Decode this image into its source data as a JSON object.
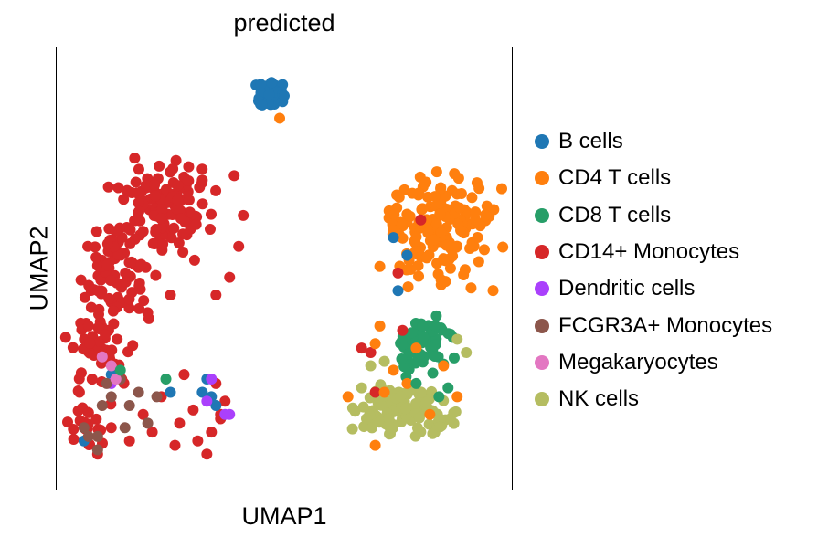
{
  "chart_data": {
    "type": "scatter",
    "title": "predicted",
    "xlabel": "UMAP1",
    "ylabel": "UMAP2",
    "xticks": [],
    "yticks": [],
    "grid": false,
    "legend_position": "right",
    "xlim": [
      0,
      100
    ],
    "ylim": [
      0,
      100
    ],
    "categories": [
      {
        "name": "B cells",
        "color": "#1f77b4"
      },
      {
        "name": "CD4 T cells",
        "color": "#ff7f0e"
      },
      {
        "name": "CD8 T cells",
        "color": "#279e68"
      },
      {
        "name": "CD14+ Monocytes",
        "color": "#d62728"
      },
      {
        "name": "Dendritic cells",
        "color": "#aa40fc"
      },
      {
        "name": "FCGR3A+ Monocytes",
        "color": "#8c564b"
      },
      {
        "name": "Megakaryocytes",
        "color": "#e377c2"
      },
      {
        "name": "NK cells",
        "color": "#b5bd61"
      }
    ],
    "clusters": [
      {
        "category": "CD14+ Monocytes",
        "center": [
          24,
          64
        ],
        "spread": [
          6,
          6
        ],
        "count": 110
      },
      {
        "category": "CD14+ Monocytes",
        "center": [
          14,
          49
        ],
        "spread": [
          5,
          6
        ],
        "count": 70
      },
      {
        "category": "CD14+ Monocytes",
        "center": [
          10,
          33
        ],
        "spread": [
          4,
          7
        ],
        "count": 50
      },
      {
        "category": "CD14+ Monocytes",
        "center": [
          6,
          15
        ],
        "spread": [
          3,
          4
        ],
        "count": 20
      },
      {
        "category": "CD4 T cells",
        "center": [
          84,
          58
        ],
        "spread": [
          7,
          8
        ],
        "count": 140
      },
      {
        "category": "CD4 T cells",
        "center": [
          75,
          61
        ],
        "spread": [
          2,
          2
        ],
        "count": 10
      },
      {
        "category": "CD8 T cells",
        "center": [
          80,
          33
        ],
        "spread": [
          4,
          4
        ],
        "count": 60
      },
      {
        "category": "NK cells",
        "center": [
          77,
          18
        ],
        "spread": [
          6,
          4
        ],
        "count": 110
      },
      {
        "category": "B cells",
        "center": [
          47,
          89
        ],
        "spread": [
          2,
          2
        ],
        "count": 50
      }
    ],
    "points": [
      {
        "category": "CD14+ Monocytes",
        "x": 16,
        "y": 11
      },
      {
        "category": "CD14+ Monocytes",
        "x": 30,
        "y": 18
      },
      {
        "category": "CD14+ Monocytes",
        "x": 36,
        "y": 16
      },
      {
        "category": "CD14+ Monocytes",
        "x": 37,
        "y": 20
      },
      {
        "category": "CD14+ Monocytes",
        "x": 35,
        "y": 24
      },
      {
        "category": "CD14+ Monocytes",
        "x": 28,
        "y": 26
      },
      {
        "category": "CD14+ Monocytes",
        "x": 23,
        "y": 21
      },
      {
        "category": "CD14+ Monocytes",
        "x": 34,
        "y": 13
      },
      {
        "category": "CD14+ Monocytes",
        "x": 31,
        "y": 11
      },
      {
        "category": "CD14+ Monocytes",
        "x": 27,
        "y": 15
      },
      {
        "category": "CD14+ Monocytes",
        "x": 33,
        "y": 8
      },
      {
        "category": "CD14+ Monocytes",
        "x": 7,
        "y": 37
      },
      {
        "category": "CD14+ Monocytes",
        "x": 5,
        "y": 22
      },
      {
        "category": "CD14+ Monocytes",
        "x": 9,
        "y": 8
      },
      {
        "category": "CD14+ Monocytes",
        "x": 12,
        "y": 14
      },
      {
        "category": "CD14+ Monocytes",
        "x": 19,
        "y": 17
      },
      {
        "category": "CD14+ Monocytes",
        "x": 21,
        "y": 13
      },
      {
        "category": "CD14+ Monocytes",
        "x": 26,
        "y": 10
      },
      {
        "category": "CD14+ Monocytes",
        "x": 40,
        "y": 55
      },
      {
        "category": "CD14+ Monocytes",
        "x": 39,
        "y": 71
      },
      {
        "category": "CD14+ Monocytes",
        "x": 32,
        "y": 70
      },
      {
        "category": "CD14+ Monocytes",
        "x": 29,
        "y": 73
      },
      {
        "category": "CD14+ Monocytes",
        "x": 41,
        "y": 62
      },
      {
        "category": "CD14+ Monocytes",
        "x": 38,
        "y": 48
      },
      {
        "category": "CD14+ Monocytes",
        "x": 35,
        "y": 44
      },
      {
        "category": "CD14+ Monocytes",
        "x": 25,
        "y": 44
      },
      {
        "category": "CD14+ Monocytes",
        "x": 20,
        "y": 40
      },
      {
        "category": "CD14+ Monocytes",
        "x": 76,
        "y": 36
      },
      {
        "category": "CD14+ Monocytes",
        "x": 69,
        "y": 31
      },
      {
        "category": "CD14+ Monocytes",
        "x": 67,
        "y": 32
      },
      {
        "category": "CD14+ Monocytes",
        "x": 70,
        "y": 22
      },
      {
        "category": "CD14+ Monocytes",
        "x": 75,
        "y": 49
      },
      {
        "category": "CD14+ Monocytes",
        "x": 80,
        "y": 61
      },
      {
        "category": "CD14+ Monocytes",
        "x": 36,
        "y": 17
      },
      {
        "category": "CD4 T cells",
        "x": 49,
        "y": 84
      },
      {
        "category": "CD4 T cells",
        "x": 71,
        "y": 37
      },
      {
        "category": "CD4 T cells",
        "x": 70,
        "y": 33
      },
      {
        "category": "CD4 T cells",
        "x": 64,
        "y": 21
      },
      {
        "category": "CD4 T cells",
        "x": 70,
        "y": 10
      },
      {
        "category": "CD4 T cells",
        "x": 79,
        "y": 32
      },
      {
        "category": "CD4 T cells",
        "x": 85,
        "y": 28
      },
      {
        "category": "CD4 T cells",
        "x": 77,
        "y": 24
      },
      {
        "category": "CD4 T cells",
        "x": 74,
        "y": 27
      },
      {
        "category": "CD4 T cells",
        "x": 72,
        "y": 22
      },
      {
        "category": "CD4 T cells",
        "x": 82,
        "y": 17
      },
      {
        "category": "CD4 T cells",
        "x": 88,
        "y": 21
      },
      {
        "category": "B cells",
        "x": 74,
        "y": 57
      },
      {
        "category": "B cells",
        "x": 77,
        "y": 53
      },
      {
        "category": "B cells",
        "x": 75,
        "y": 45
      },
      {
        "category": "B cells",
        "x": 25,
        "y": 22
      },
      {
        "category": "B cells",
        "x": 32,
        "y": 22
      },
      {
        "category": "B cells",
        "x": 34,
        "y": 21
      },
      {
        "category": "B cells",
        "x": 35,
        "y": 19
      },
      {
        "category": "B cells",
        "x": 33,
        "y": 25
      },
      {
        "category": "B cells",
        "x": 12,
        "y": 26
      },
      {
        "category": "B cells",
        "x": 6,
        "y": 11
      },
      {
        "category": "Dendritic cells",
        "x": 34,
        "y": 25
      },
      {
        "category": "Dendritic cells",
        "x": 33,
        "y": 20
      },
      {
        "category": "Dendritic cells",
        "x": 37,
        "y": 17
      },
      {
        "category": "Dendritic cells",
        "x": 38,
        "y": 17
      },
      {
        "category": "Dendritic cells",
        "x": 12,
        "y": 24
      },
      {
        "category": "FCGR3A+ Monocytes",
        "x": 7,
        "y": 12
      },
      {
        "category": "FCGR3A+ Monocytes",
        "x": 6,
        "y": 14
      },
      {
        "category": "FCGR3A+ Monocytes",
        "x": 9,
        "y": 12
      },
      {
        "category": "FCGR3A+ Monocytes",
        "x": 10,
        "y": 19
      },
      {
        "category": "FCGR3A+ Monocytes",
        "x": 12,
        "y": 21
      },
      {
        "category": "FCGR3A+ Monocytes",
        "x": 14,
        "y": 25
      },
      {
        "category": "FCGR3A+ Monocytes",
        "x": 16,
        "y": 19
      },
      {
        "category": "FCGR3A+ Monocytes",
        "x": 20,
        "y": 15
      },
      {
        "category": "FCGR3A+ Monocytes",
        "x": 22,
        "y": 21
      },
      {
        "category": "FCGR3A+ Monocytes",
        "x": 15,
        "y": 14
      },
      {
        "category": "FCGR3A+ Monocytes",
        "x": 9,
        "y": 9
      },
      {
        "category": "FCGR3A+ Monocytes",
        "x": 11,
        "y": 24
      },
      {
        "category": "FCGR3A+ Monocytes",
        "x": 18,
        "y": 22
      },
      {
        "category": "Megakaryocytes",
        "x": 12,
        "y": 28
      },
      {
        "category": "Megakaryocytes",
        "x": 13,
        "y": 25
      },
      {
        "category": "Megakaryocytes",
        "x": 10,
        "y": 30
      },
      {
        "category": "CD8 T cells",
        "x": 14,
        "y": 27
      },
      {
        "category": "CD8 T cells",
        "x": 24,
        "y": 25
      },
      {
        "category": "CD8 T cells",
        "x": 79,
        "y": 24
      },
      {
        "category": "CD8 T cells",
        "x": 86,
        "y": 23
      },
      {
        "category": "CD8 T cells",
        "x": 84,
        "y": 21
      },
      {
        "category": "NK cells",
        "x": 90,
        "y": 31
      },
      {
        "category": "NK cells",
        "x": 88,
        "y": 34
      },
      {
        "category": "NK cells",
        "x": 69,
        "y": 28
      },
      {
        "category": "NK cells",
        "x": 72,
        "y": 29
      },
      {
        "category": "NK cells",
        "x": 67,
        "y": 23
      }
    ]
  }
}
